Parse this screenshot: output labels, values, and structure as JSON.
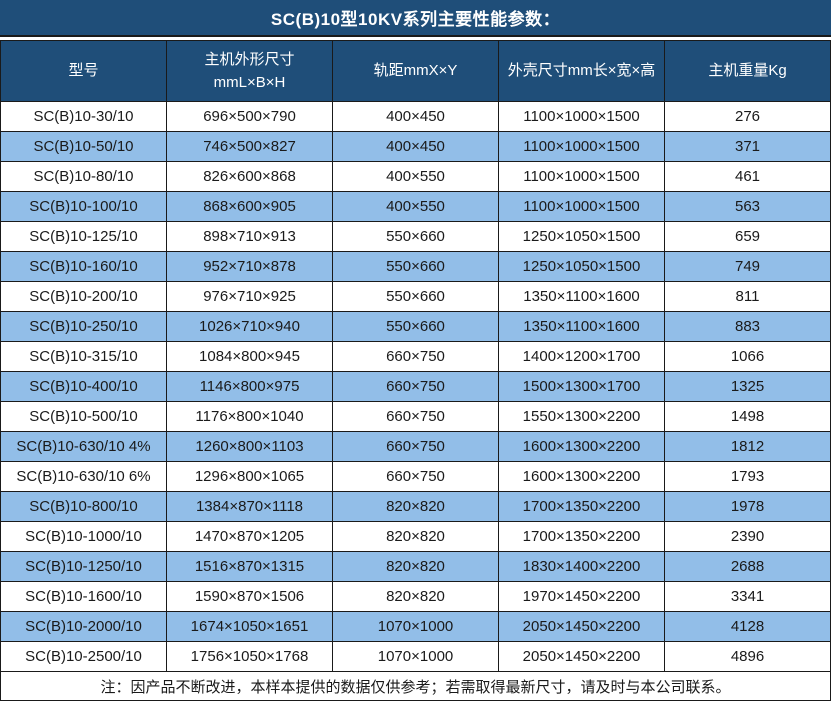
{
  "title": "SC(B)10型10KV系列主要性能参数：",
  "colors": {
    "title_bg": "#1F4E79",
    "header_bg": "#1F4E79",
    "alt_row_bg": "#92BEE8",
    "border": "#1A1A1A",
    "header_text": "#FFFFFF",
    "body_text": "#1A1A1A"
  },
  "table": {
    "col_names": [
      "model-cell",
      "unit-dimensions-cell",
      "rail-gauge-cell",
      "enclosure-dimensions-cell",
      "weight-cell"
    ],
    "headers": [
      {
        "lines": [
          "型号"
        ]
      },
      {
        "lines": [
          "主机外形尺寸",
          "mmL×B×H"
        ]
      },
      {
        "lines": [
          "轨距mmX×Y"
        ]
      },
      {
        "lines": [
          "外壳尺寸mm长×宽×高"
        ]
      },
      {
        "lines": [
          "主机重量Kg"
        ]
      }
    ],
    "rows": [
      [
        "SC(B)10-30/10",
        "696×500×790",
        "400×450",
        "1100×1000×1500",
        "276"
      ],
      [
        "SC(B)10-50/10",
        "746×500×827",
        "400×450",
        "1100×1000×1500",
        "371"
      ],
      [
        "SC(B)10-80/10",
        "826×600×868",
        "400×550",
        "1100×1000×1500",
        "461"
      ],
      [
        "SC(B)10-100/10",
        "868×600×905",
        "400×550",
        "1100×1000×1500",
        "563"
      ],
      [
        "SC(B)10-125/10",
        "898×710×913",
        "550×660",
        "1250×1050×1500",
        "659"
      ],
      [
        "SC(B)10-160/10",
        "952×710×878",
        "550×660",
        "1250×1050×1500",
        "749"
      ],
      [
        "SC(B)10-200/10",
        "976×710×925",
        "550×660",
        "1350×1100×1600",
        "811"
      ],
      [
        "SC(B)10-250/10",
        "1026×710×940",
        "550×660",
        "1350×1100×1600",
        "883"
      ],
      [
        "SC(B)10-315/10",
        "1084×800×945",
        "660×750",
        "1400×1200×1700",
        "1066"
      ],
      [
        "SC(B)10-400/10",
        "1146×800×975",
        "660×750",
        "1500×1300×1700",
        "1325"
      ],
      [
        "SC(B)10-500/10",
        "1176×800×1040",
        "660×750",
        "1550×1300×2200",
        "1498"
      ],
      [
        "SC(B)10-630/10 4%",
        "1260×800×1103",
        "660×750",
        "1600×1300×2200",
        "1812"
      ],
      [
        "SC(B)10-630/10 6%",
        "1296×800×1065",
        "660×750",
        "1600×1300×2200",
        "1793"
      ],
      [
        "SC(B)10-800/10",
        "1384×870×1118",
        "820×820",
        "1700×1350×2200",
        "1978"
      ],
      [
        "SC(B)10-1000/10",
        "1470×870×1205",
        "820×820",
        "1700×1350×2200",
        "2390"
      ],
      [
        "SC(B)10-1250/10",
        "1516×870×1315",
        "820×820",
        "1830×1400×2200",
        "2688"
      ],
      [
        "SC(B)10-1600/10",
        "1590×870×1506",
        "820×820",
        "1970×1450×2200",
        "3341"
      ],
      [
        "SC(B)10-2000/10",
        "1674×1050×1651",
        "1070×1000",
        "2050×1450×2200",
        "4128"
      ],
      [
        "SC(B)10-2500/10",
        "1756×1050×1768",
        "1070×1000",
        "2050×1450×2200",
        "4896"
      ]
    ],
    "note": "注：因产品不断改进，本样本提供的数据仅供参考；若需取得最新尺寸，请及时与本公司联系。"
  }
}
